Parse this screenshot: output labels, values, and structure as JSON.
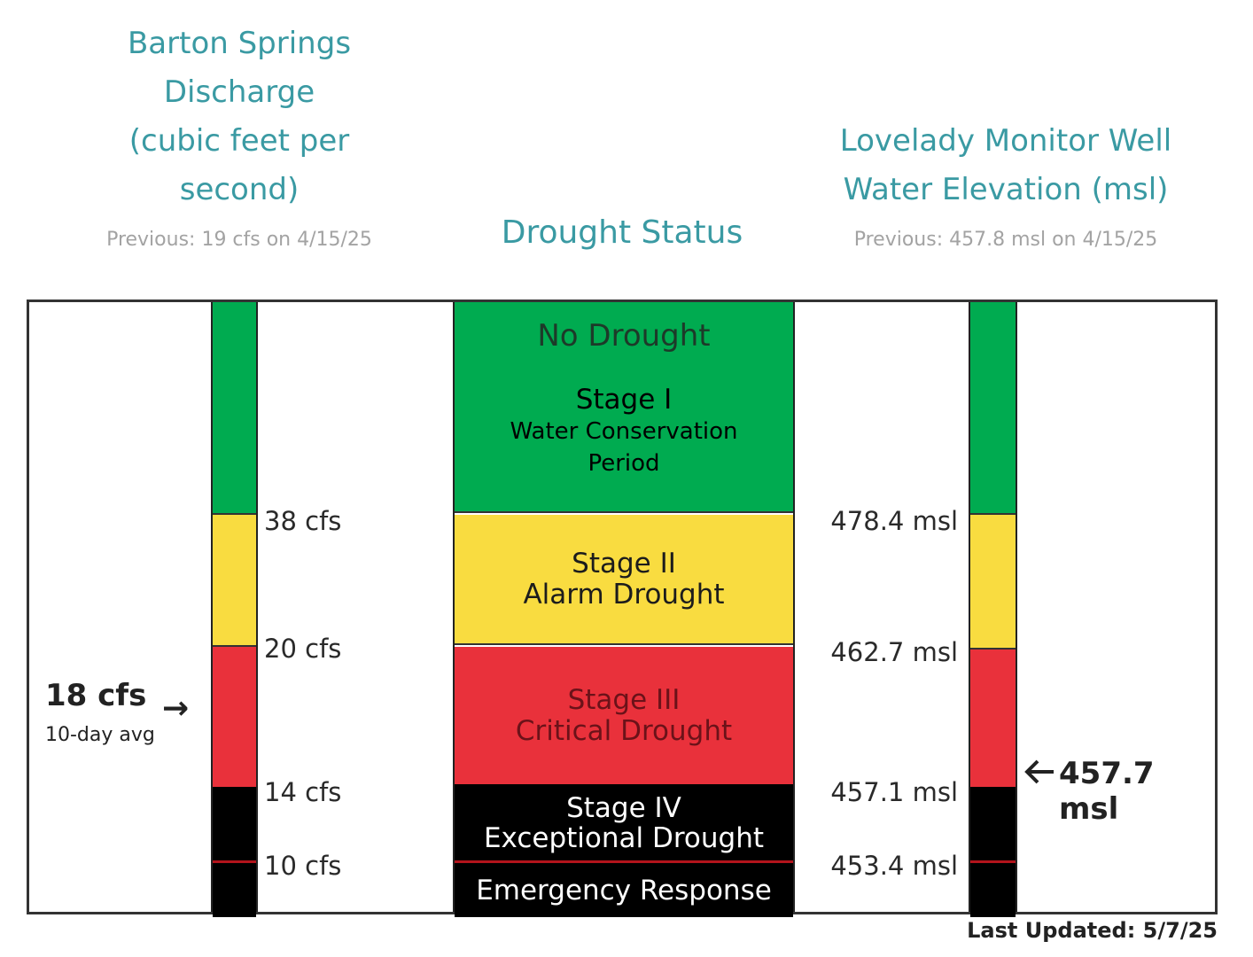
{
  "header": {
    "left_title_lines": [
      "Barton Springs",
      "Discharge",
      "(cubic feet per",
      "second)"
    ],
    "left_previous": "Previous: 19 cfs on 4/15/25",
    "center_title": "Drought Status",
    "right_title_lines": [
      "Lovelady Monitor Well",
      "Water Elevation (msl)"
    ],
    "right_previous": "Previous: 457.8 msl on 4/15/25"
  },
  "left_current": {
    "value": "18 cfs",
    "note": "10-day avg",
    "arrow": "→"
  },
  "right_current": {
    "value": "457.7 msl",
    "arrow": "🡐"
  },
  "cfs_thresholds": [
    "38 cfs",
    "20 cfs",
    "14 cfs",
    "10 cfs"
  ],
  "msl_thresholds": [
    "478.4 msl",
    "462.7 msl",
    "457.1 msl",
    "453.4 msl"
  ],
  "stages": {
    "no_drought": "No Drought",
    "stage1_title": "Stage I",
    "stage1_sub_lines": [
      "Water Conservation",
      "Period"
    ],
    "stage2_title": "Stage II",
    "stage2_sub": "Alarm Drought",
    "stage3_title": "Stage III",
    "stage3_sub": "Critical Drought",
    "stage4_title": "Stage IV",
    "stage4_sub": "Exceptional Drought",
    "emergency": "Emergency Response"
  },
  "footer": {
    "last_updated": "Last Updated: 5/7/25"
  },
  "colors": {
    "green": "#00ab50",
    "yellow": "#f9dc40",
    "red": "#e9313b",
    "black": "#000000",
    "divider_red": "#b3141c",
    "teal": "#3a9aa3"
  }
}
